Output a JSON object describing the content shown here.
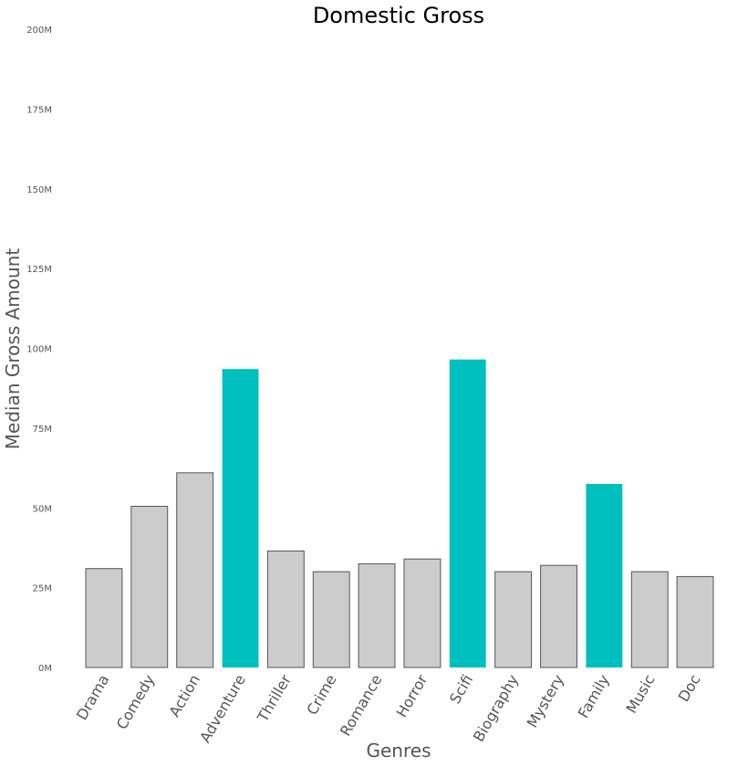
{
  "chart_data": {
    "type": "bar",
    "title": "Domestic Gross",
    "xlabel": "Genres",
    "ylabel": "Median Gross Amount",
    "categories": [
      "Drama",
      "Comedy",
      "Action",
      "Adventure",
      "Thriller",
      "Crime",
      "Romance",
      "Horror",
      "Scifi",
      "Biography",
      "Mystery",
      "Family",
      "Music",
      "Doc"
    ],
    "values": [
      31,
      50.5,
      61,
      93.5,
      36.5,
      30,
      32.5,
      34,
      96.5,
      30,
      32,
      57.5,
      30,
      28.5
    ],
    "highlighted": [
      "Adventure",
      "Scifi",
      "Family"
    ],
    "ylim": [
      0,
      200
    ],
    "yticks": [
      0,
      25,
      50,
      75,
      100,
      125,
      150,
      175,
      200
    ],
    "ytick_labels": [
      "0M",
      "25M",
      "50M",
      "75M",
      "100M",
      "125M",
      "150M",
      "175M",
      "200M"
    ],
    "units": "M",
    "grid": false,
    "colors": {
      "default": "#cccccc",
      "highlight": "#00bfbf",
      "edge": "#555555"
    }
  }
}
